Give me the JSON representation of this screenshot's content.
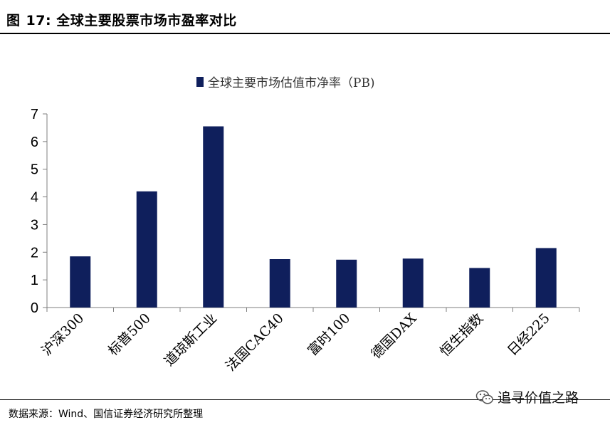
{
  "figure": {
    "label": "图",
    "number": "17:",
    "title": "全球主要股票市场市盈率对比"
  },
  "source": "数据来源：Wind、国信证券经济研究所整理",
  "watermark": {
    "text": "追寻价值之路",
    "icon": "wechat-icon"
  },
  "colors": {
    "bar": "#0f1f5c",
    "axis": "#7f7f7f"
  },
  "chart_data": {
    "type": "bar",
    "title": "",
    "xlabel": "",
    "ylabel": "",
    "legend": {
      "placement": "top-center",
      "entries": [
        "全球主要市场估值市净率（PB)"
      ]
    },
    "categories": [
      "沪深300",
      "标普500",
      "道琼斯工业",
      "法国CAC40",
      "富时100",
      "德国DAX",
      "恒生指数",
      "日经225"
    ],
    "series": [
      {
        "name": "全球主要市场估值市净率（PB)",
        "values": [
          1.85,
          4.2,
          6.55,
          1.75,
          1.73,
          1.77,
          1.43,
          2.15
        ]
      }
    ],
    "ylim": [
      0,
      7
    ],
    "yticks": [
      "0",
      "1",
      "2",
      "3",
      "4",
      "5",
      "6",
      "7"
    ],
    "grid": false
  }
}
